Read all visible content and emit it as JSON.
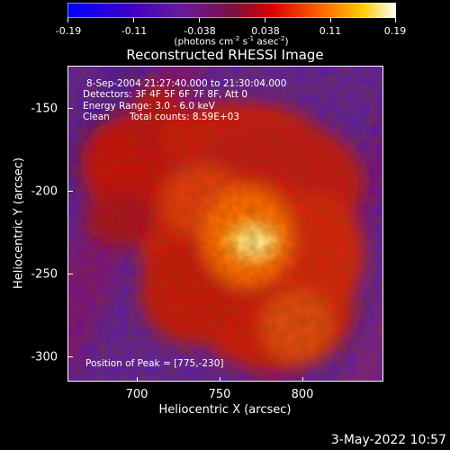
{
  "colorbar": {
    "tick_labels": [
      "-0.19",
      "-0.11",
      "-0.038",
      "0.038",
      "0.11",
      "0.19"
    ],
    "units_text": "(photons cm",
    "units_sup1": "-2",
    "units_mid1": " s",
    "units_sup2": "-1",
    "units_mid2": " asec",
    "units_sup3": "-2",
    "units_end": ")"
  },
  "plot": {
    "title": "Reconstructed RHESSI Image",
    "xlabel": "Heliocentric X (arcsec)",
    "ylabel": "Heliocentric Y (arcsec)",
    "x_ticks": [
      "700",
      "750",
      "800"
    ],
    "y_ticks": [
      "-150",
      "-200",
      "-250",
      "-300"
    ],
    "xlim": [
      662,
      846
    ],
    "ylim": [
      -316,
      -126
    ]
  },
  "info": {
    "time_range": "8-Sep-2004 21:27:40.000 to 21:30:04.000",
    "detectors": "Detectors: 3F 4F 5F 6F 7F 8F, Att 0",
    "energy": "Energy Range: 3.0 - 6.0 keV",
    "algorithm": "Clean",
    "total_counts": "Total counts: 8.59E+03",
    "peak_position": "Position of Peak = [775,-230]"
  },
  "footer": {
    "date": "3-May-2022 10:57"
  }
}
